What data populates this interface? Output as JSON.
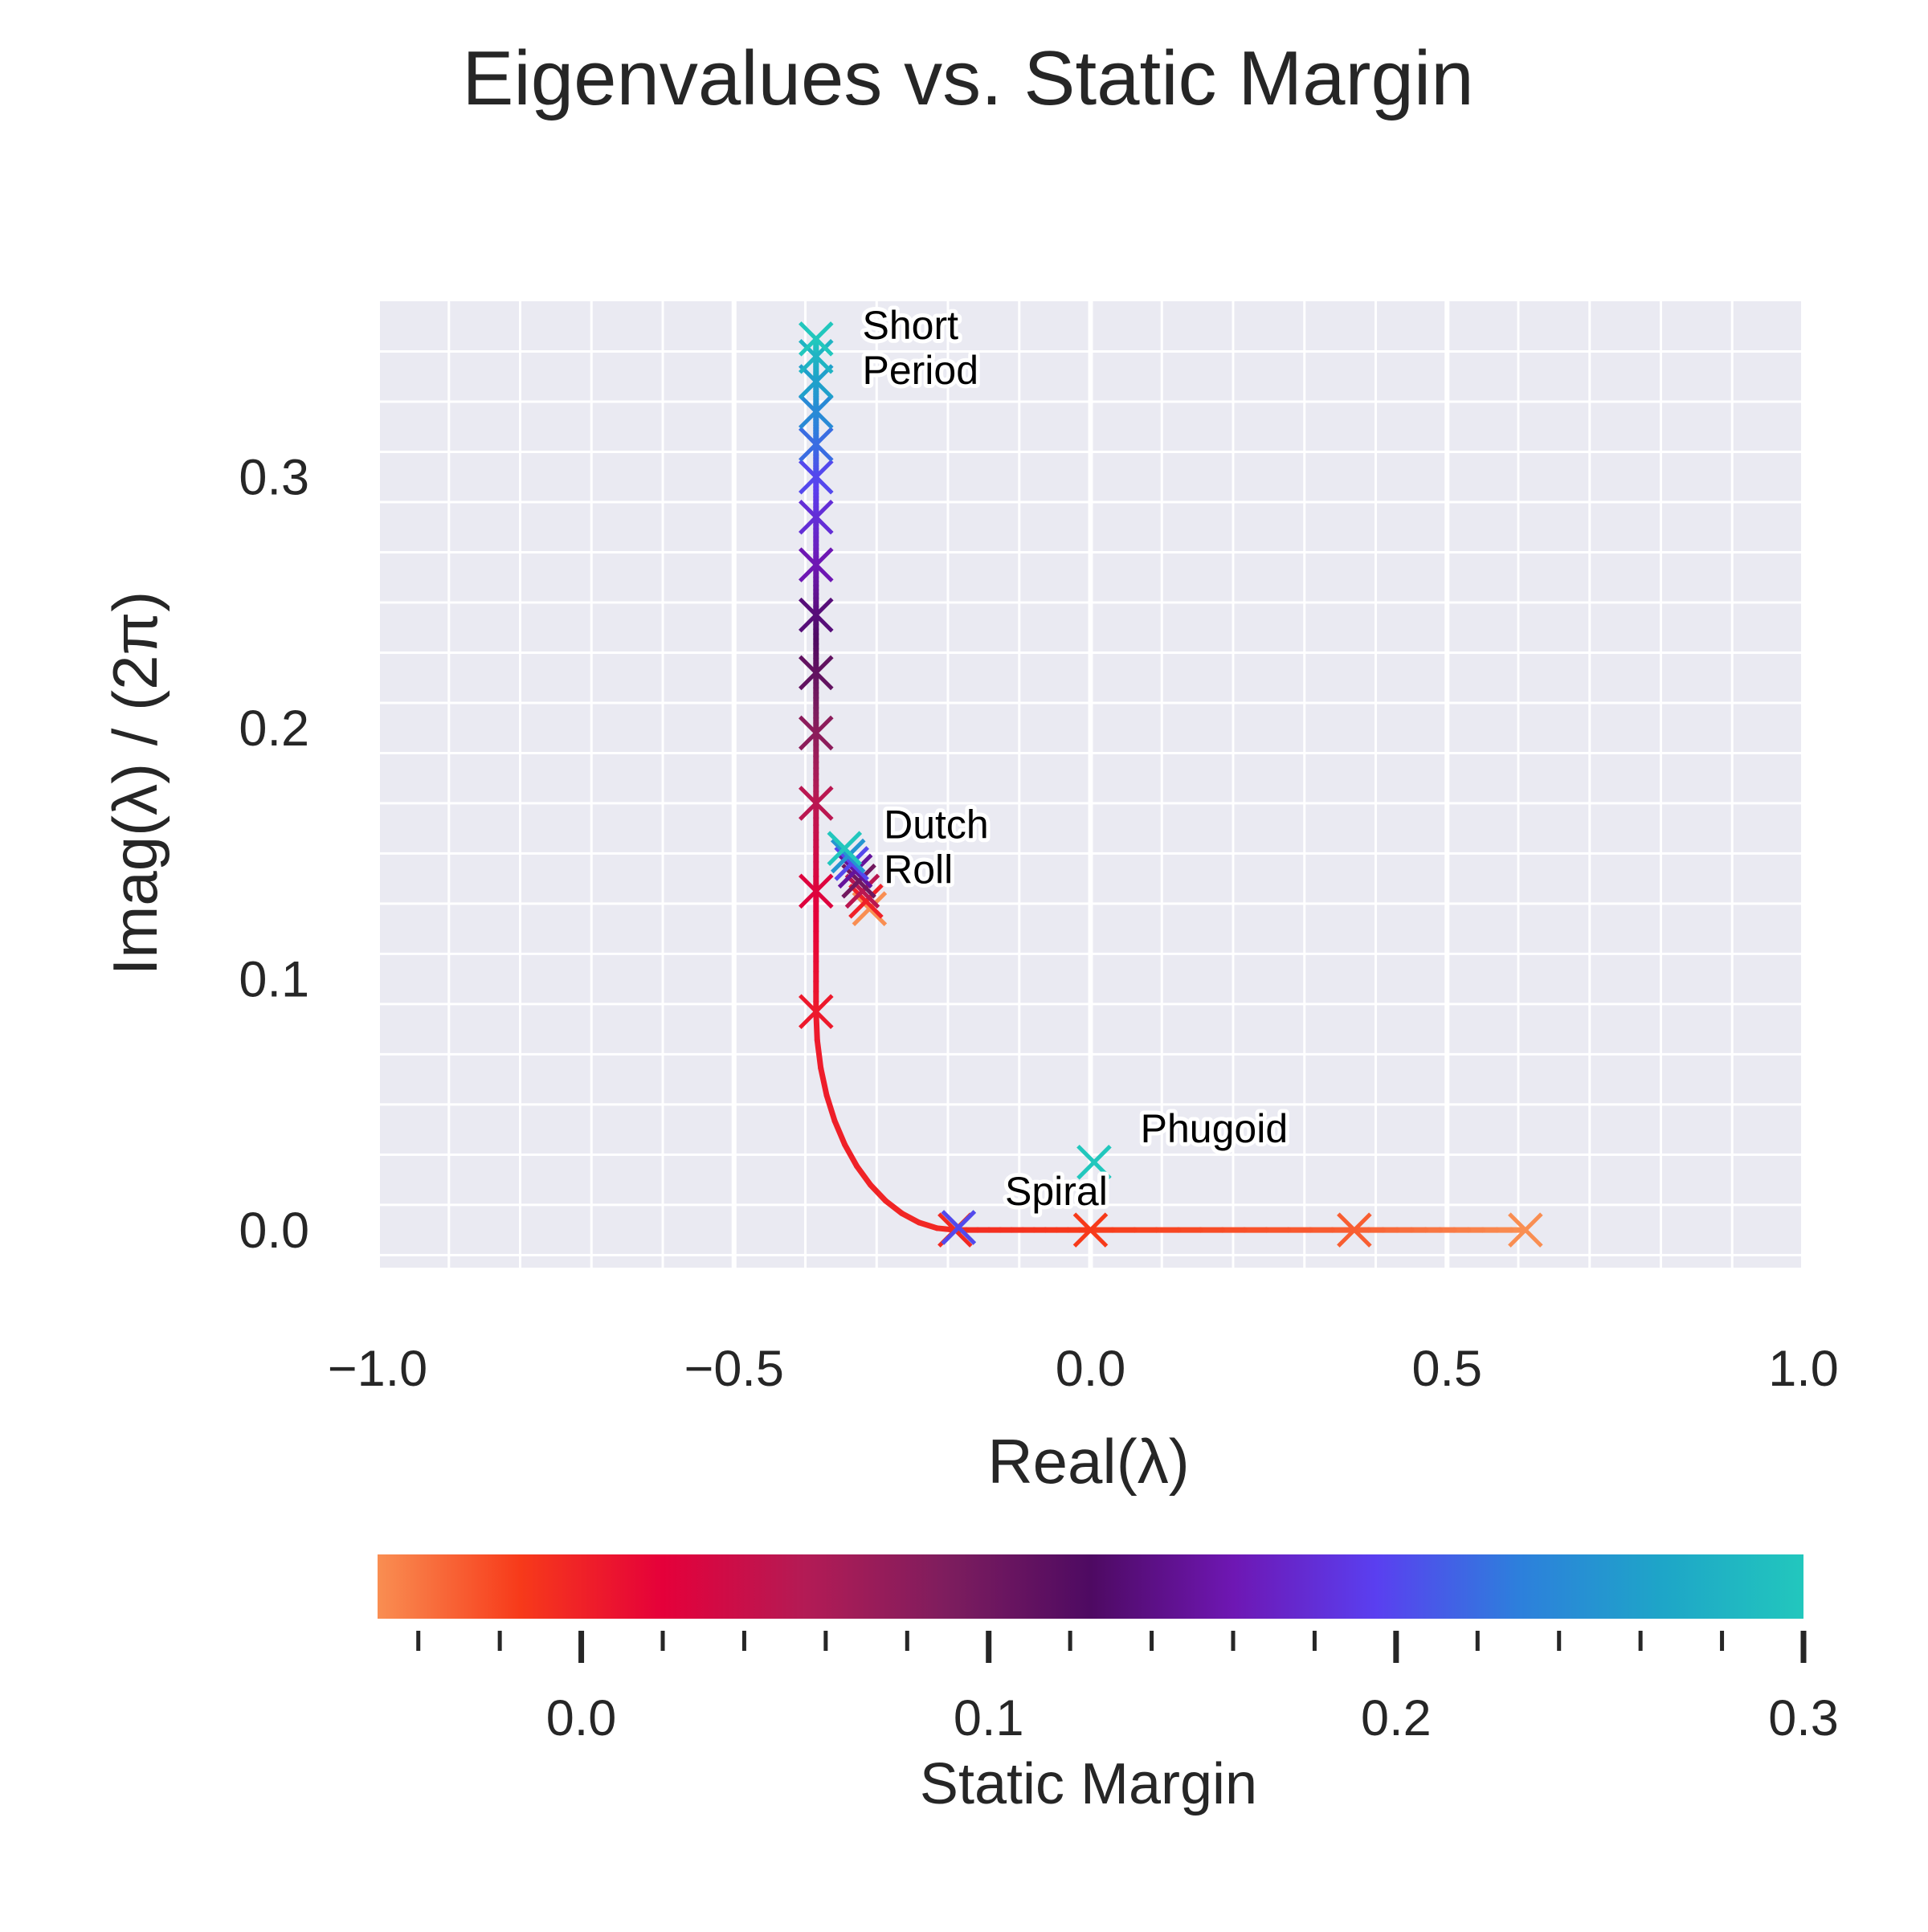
{
  "chart_data": {
    "type": "scatter",
    "title": "Eigenvalues vs. Static Margin",
    "xlabel": "Real(λ)",
    "ylabel": "Imag(λ) / (2π)",
    "xlim": [
      -1.0,
      1.0
    ],
    "ylim": [
      -0.015,
      0.37
    ],
    "x_ticks": [
      -1.0,
      -0.5,
      0.0,
      0.5,
      1.0
    ],
    "x_tick_labels": [
      "−1.0",
      "−0.5",
      "0.0",
      "0.5",
      "1.0"
    ],
    "y_ticks": [
      0.0,
      0.1,
      0.2,
      0.3
    ],
    "y_tick_labels": [
      "0.0",
      "0.1",
      "0.2",
      "0.3"
    ],
    "grid": true,
    "colorbar": {
      "label": "Static Margin",
      "range": [
        -0.05,
        0.3
      ],
      "ticks": [
        0.0,
        0.1,
        0.2,
        0.3
      ],
      "tick_labels": [
        "0.0",
        "0.1",
        "0.2",
        "0.3"
      ],
      "colors": [
        "#f98e52",
        "#f73a1a",
        "#e5003a",
        "#b31b55",
        "#7d1d5e",
        "#4e0a62",
        "#6e17b3",
        "#5a3ff0",
        "#2d7fdc",
        "#1ea5c8",
        "#22c7bd"
      ]
    },
    "annotations": [
      {
        "text_lines": [
          "Short",
          "Period"
        ],
        "x": -0.32,
        "y": 0.355
      },
      {
        "text_lines": [
          "Dutch",
          "Roll"
        ],
        "x": -0.29,
        "y": 0.156
      },
      {
        "text_lines": [
          "Phugoid"
        ],
        "x": 0.07,
        "y": 0.035
      },
      {
        "text_lines": [
          "Spiral"
        ],
        "x": -0.12,
        "y": 0.01
      }
    ],
    "series": [
      {
        "mode": "Short Period locus",
        "points": [
          {
            "sm": -0.05,
            "x": 0.61,
            "y": 0.0
          },
          {
            "sm": -0.03,
            "x": 0.37,
            "y": 0.0
          },
          {
            "sm": -0.015,
            "x": 0.0,
            "y": 0.0
          },
          {
            "sm": -0.005,
            "x": -0.19,
            "y": 0.0
          },
          {
            "sm": 0.005,
            "x": -0.385,
            "y": 0.087
          },
          {
            "sm": 0.025,
            "x": -0.385,
            "y": 0.135
          },
          {
            "sm": 0.05,
            "x": -0.385,
            "y": 0.17
          },
          {
            "sm": 0.08,
            "x": -0.385,
            "y": 0.198
          },
          {
            "sm": 0.11,
            "x": -0.385,
            "y": 0.222
          },
          {
            "sm": 0.135,
            "x": -0.385,
            "y": 0.245
          },
          {
            "sm": 0.16,
            "x": -0.385,
            "y": 0.265
          },
          {
            "sm": 0.18,
            "x": -0.385,
            "y": 0.284
          },
          {
            "sm": 0.2,
            "x": -0.385,
            "y": 0.3
          },
          {
            "sm": 0.22,
            "x": -0.385,
            "y": 0.313
          },
          {
            "sm": 0.24,
            "x": -0.385,
            "y": 0.326
          },
          {
            "sm": 0.26,
            "x": -0.385,
            "y": 0.338
          },
          {
            "sm": 0.28,
            "x": -0.385,
            "y": 0.348
          },
          {
            "sm": 0.3,
            "x": -0.385,
            "y": 0.355
          }
        ]
      },
      {
        "mode": "Dutch Roll",
        "points": [
          {
            "sm": -0.05,
            "x": -0.31,
            "y": 0.128
          },
          {
            "sm": 0.0,
            "x": -0.315,
            "y": 0.131
          },
          {
            "sm": 0.05,
            "x": -0.32,
            "y": 0.135
          },
          {
            "sm": 0.1,
            "x": -0.325,
            "y": 0.139
          },
          {
            "sm": 0.15,
            "x": -0.33,
            "y": 0.143
          },
          {
            "sm": 0.2,
            "x": -0.335,
            "y": 0.146
          },
          {
            "sm": 0.25,
            "x": -0.34,
            "y": 0.149
          },
          {
            "sm": 0.3,
            "x": -0.345,
            "y": 0.152
          }
        ]
      },
      {
        "mode": "Phugoid",
        "points": [
          {
            "sm": 0.3,
            "x": 0.005,
            "y": 0.027
          }
        ]
      },
      {
        "mode": "Spiral",
        "points": [
          {
            "sm": 0.3,
            "x": -0.185,
            "y": 0.001
          },
          {
            "sm": 0.2,
            "x": -0.185,
            "y": 0.001
          }
        ]
      }
    ]
  }
}
